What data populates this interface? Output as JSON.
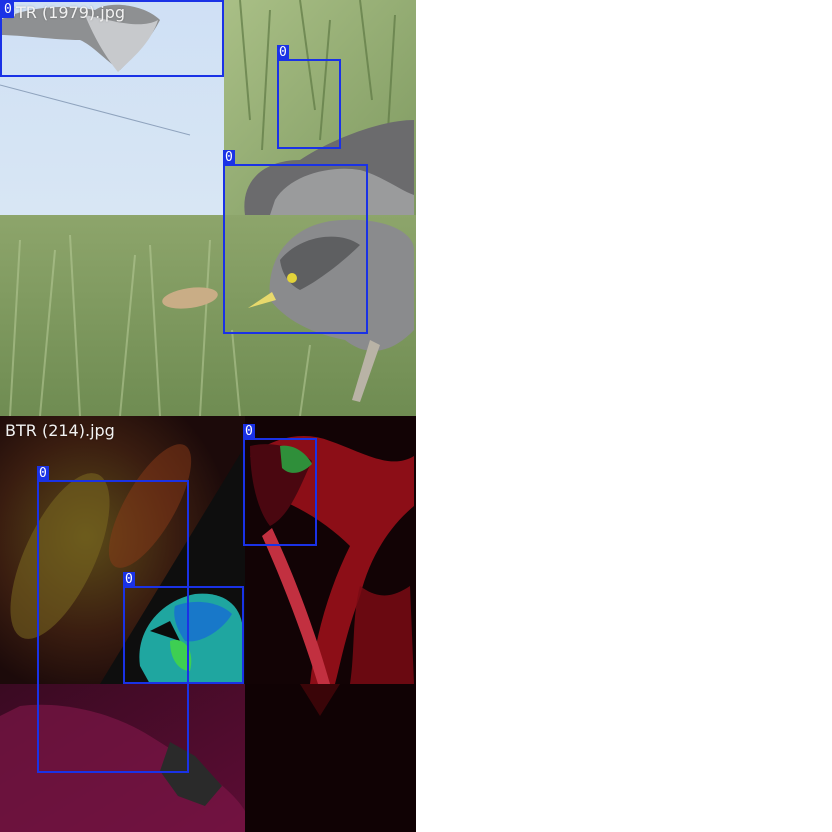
{
  "tiles": [
    {
      "filename": "BTR (1979).jpg",
      "boxes": [
        {
          "label": "0"
        },
        {
          "label": "0"
        },
        {
          "label": "0"
        }
      ]
    },
    {
      "filename": "BTR (214).jpg",
      "boxes": [
        {
          "label": "0"
        },
        {
          "label": "0"
        },
        {
          "label": "0"
        }
      ]
    }
  ],
  "colors": {
    "box": "#1a32e6",
    "label_bg": "#1a32e6",
    "label_text": "#ffffff"
  }
}
